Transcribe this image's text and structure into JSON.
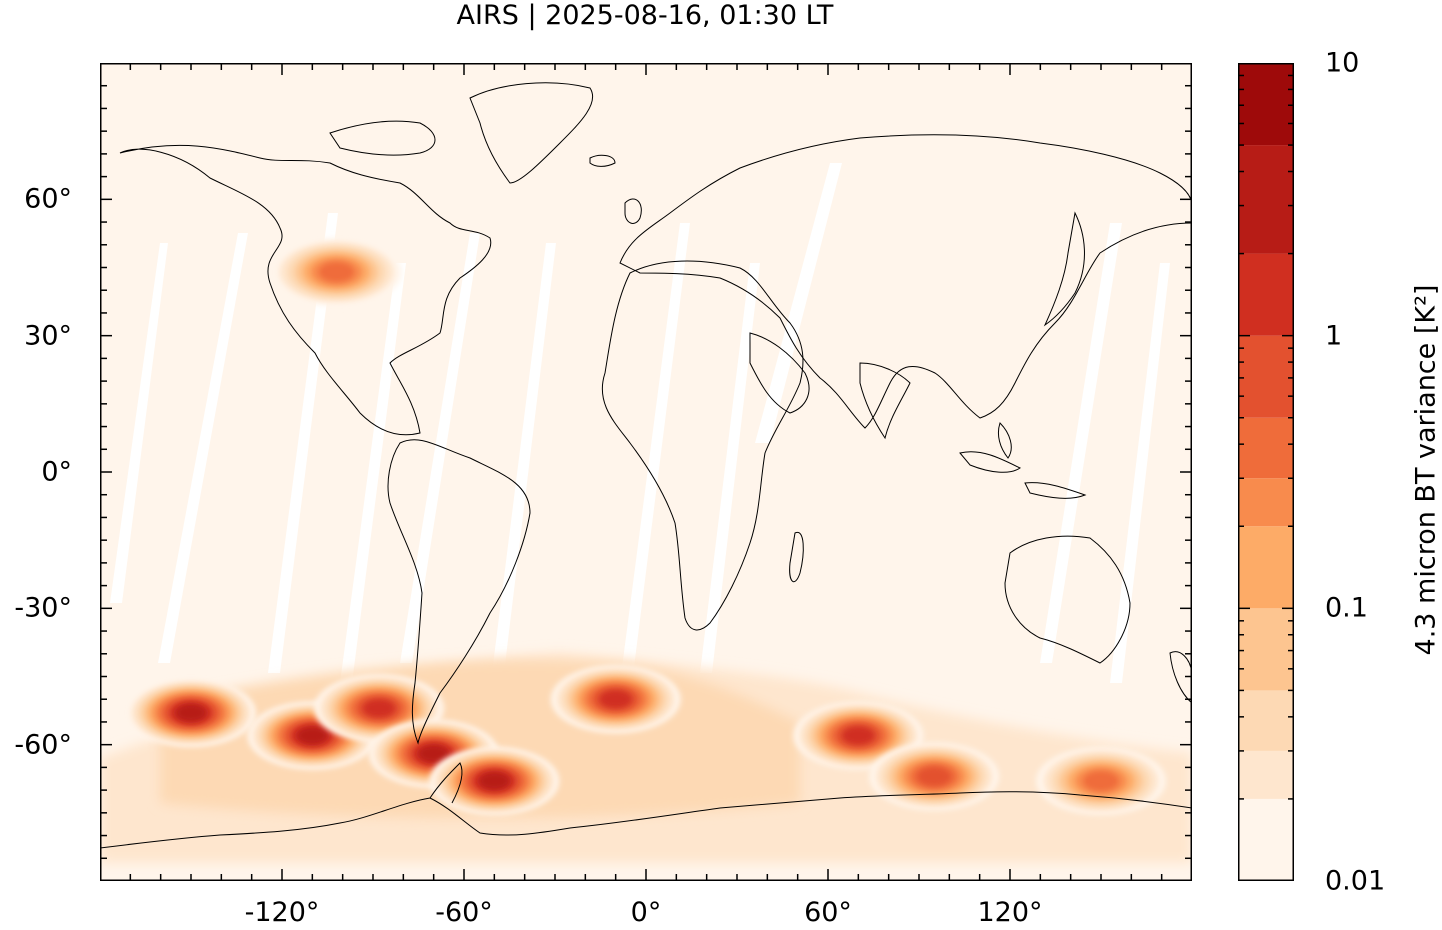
{
  "title": "AIRS | 2025-08-16, 01:30 LT",
  "map": {
    "projection": "plate-carree",
    "lon_range": [
      -180,
      180
    ],
    "lat_range": [
      -90,
      90
    ],
    "lat_ticks": [
      {
        "value": 60,
        "label": "60°"
      },
      {
        "value": 30,
        "label": "30°"
      },
      {
        "value": 0,
        "label": "0°"
      },
      {
        "value": -30,
        "label": "-30°"
      },
      {
        "value": -60,
        "label": "-60°"
      }
    ],
    "lon_ticks": [
      {
        "value": -120,
        "label": "-120°"
      },
      {
        "value": -60,
        "label": "-60°"
      },
      {
        "value": 0,
        "label": "0°"
      },
      {
        "value": 60,
        "label": "60°"
      },
      {
        "value": 120,
        "label": "120°"
      }
    ],
    "background_color": "#fff5eb",
    "gap_color": "#ffffff",
    "coastline_color": "#000000"
  },
  "colorbar": {
    "label": "4.3 micron BT variance [K²]",
    "scale": "log",
    "range": [
      0.01,
      10
    ],
    "tick_labels": [
      {
        "value": 10,
        "label": "10"
      },
      {
        "value": 1,
        "label": "1"
      },
      {
        "value": 0.1,
        "label": "0.1"
      },
      {
        "value": 0.01,
        "label": "0.01"
      }
    ],
    "levels": [
      0.01,
      0.02,
      0.03,
      0.05,
      0.1,
      0.2,
      0.3,
      0.5,
      1,
      2,
      5,
      10
    ],
    "colors": [
      "#fff5eb",
      "#fee6ce",
      "#fdd9b4",
      "#fdc590",
      "#fdab67",
      "#f88b4d",
      "#ef6c3a",
      "#e3512f",
      "#d02f20",
      "#b71c16",
      "#9e0a0a"
    ]
  },
  "chart_data": {
    "type": "heatmap",
    "title": "AIRS | 2025-08-16, 01:30 LT",
    "colorbar_label": "4.3 micron BT variance [K²]",
    "x_axis": "longitude",
    "y_axis": "latitude",
    "xlim": [
      -180,
      180
    ],
    "ylim": [
      -90,
      90
    ],
    "grid": false,
    "hotspots": [
      {
        "lon": -150,
        "lat": -53,
        "value": 2.0
      },
      {
        "lon": -110,
        "lat": -58,
        "value": 2.0
      },
      {
        "lon": -88,
        "lat": -52,
        "value": 1.5
      },
      {
        "lon": -70,
        "lat": -62,
        "value": 3.0
      },
      {
        "lon": -50,
        "lat": -68,
        "value": 3.5
      },
      {
        "lon": -10,
        "lat": -50,
        "value": 1.0
      },
      {
        "lon": 70,
        "lat": -58,
        "value": 1.0
      },
      {
        "lon": 95,
        "lat": -67,
        "value": 0.5
      },
      {
        "lon": 150,
        "lat": -68,
        "value": 0.4
      },
      {
        "lon": -102,
        "lat": 44,
        "value": 0.3
      }
    ]
  }
}
